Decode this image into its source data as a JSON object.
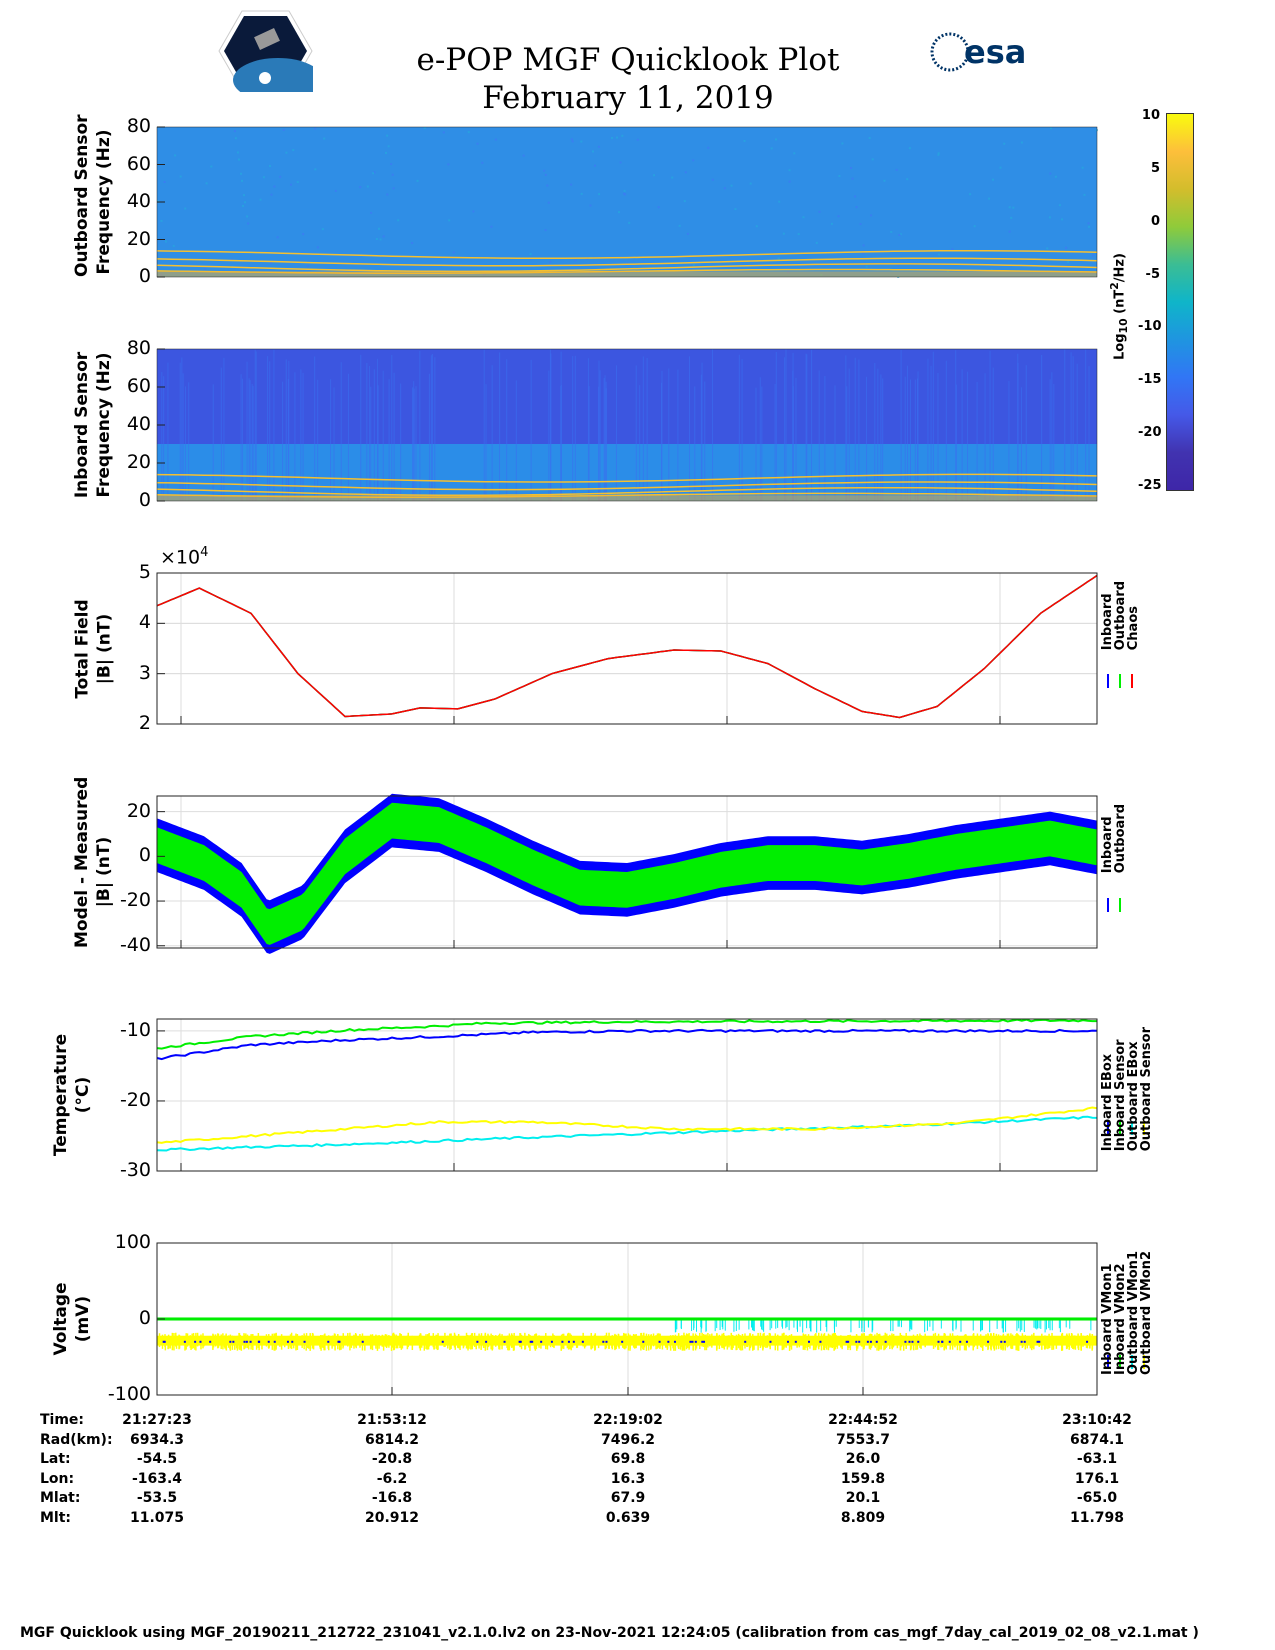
{
  "header": {
    "title": "e-POP MGF Quicklook Plot",
    "date": "February 11, 2019",
    "left_logo": "CASSIOPE e-POP",
    "right_logo": "esa"
  },
  "colorbar": {
    "label": "Log10 (nT^2/Hz)",
    "label_main": "Log",
    "label_sub": "10",
    "label_rest": " (nT",
    "label_sup": "2",
    "label_end": "/Hz)",
    "range": [
      -25,
      10
    ],
    "ticks": [
      "10",
      "5",
      "0",
      "-5",
      "-10",
      "-15",
      "-20",
      "-25"
    ]
  },
  "chart_data": [
    {
      "type": "heatmap",
      "name": "outboard-spectrogram",
      "ylabel": [
        "Outboard Sensor",
        "Frequency (Hz)"
      ],
      "ylim": [
        0,
        80
      ],
      "yticks": [
        "80",
        "60",
        "40",
        "20",
        "0"
      ]
    },
    {
      "type": "heatmap",
      "name": "inboard-spectrogram",
      "ylabel": [
        "Inboard Sensor",
        "Frequency (Hz)"
      ],
      "ylim": [
        0,
        80
      ],
      "yticks": [
        "80",
        "60",
        "40",
        "20",
        "0"
      ]
    },
    {
      "type": "line",
      "name": "total-field",
      "ylabel": [
        "Total Field",
        "|B| (nT)"
      ],
      "ylim": [
        2,
        5
      ],
      "yticks": [
        "5",
        "4",
        "3",
        "2"
      ],
      "exponent": "×10",
      "exponent_power": "4",
      "legend": [
        "Inboard",
        "Outboard",
        "Chaos"
      ],
      "colors": [
        "#0000ff",
        "#00ee00",
        "#ff0000"
      ],
      "x": [
        0,
        0.045,
        0.1,
        0.15,
        0.2,
        0.25,
        0.28,
        0.32,
        0.36,
        0.42,
        0.48,
        0.55,
        0.6,
        0.65,
        0.7,
        0.75,
        0.79,
        0.83,
        0.88,
        0.94,
        1
      ],
      "y": [
        4.35,
        4.7,
        4.2,
        3.0,
        2.15,
        2.2,
        2.32,
        2.3,
        2.5,
        3.0,
        3.3,
        3.47,
        3.45,
        3.2,
        2.7,
        2.25,
        2.13,
        2.35,
        3.1,
        4.2,
        4.95
      ]
    },
    {
      "type": "line",
      "name": "model-minus-measured",
      "ylabel": [
        "Model - Measured",
        "|B| (nT)"
      ],
      "ylim": [
        -41,
        27
      ],
      "yticks": [
        "20",
        "0",
        "-20",
        "-40"
      ],
      "ytick_values": [
        20,
        0,
        -20,
        -40
      ],
      "legend": [
        "Inboard",
        "Outboard"
      ],
      "colors": [
        "#0000ff",
        "#00ee00"
      ],
      "x": [
        0,
        0.05,
        0.09,
        0.118,
        0.155,
        0.2,
        0.25,
        0.3,
        0.35,
        0.4,
        0.45,
        0.5,
        0.55,
        0.6,
        0.65,
        0.7,
        0.75,
        0.8,
        0.85,
        0.9,
        0.95,
        1
      ],
      "y": [
        5,
        -3,
        -15,
        -32,
        -25,
        0,
        16,
        14,
        5,
        -5,
        -14,
        -15,
        -11,
        -6,
        -3,
        -3,
        -5,
        -2,
        2,
        5,
        8,
        4
      ],
      "band_outboard": 8,
      "band_inboard": 12
    },
    {
      "type": "line",
      "name": "temperature",
      "ylabel": [
        "Temperature",
        "(°C)"
      ],
      "ylim": [
        -30,
        -8.3
      ],
      "yticks": [
        "-10",
        "-20",
        "-30"
      ],
      "ytick_values": [
        -10,
        -20,
        -30
      ],
      "legend": [
        "Inboard EBox",
        "Inboard Sensor",
        "Outboard EBox",
        "Outboard Sensor"
      ],
      "colors": [
        "#0000ff",
        "#00ee00",
        "#00eeee",
        "#ffff00"
      ],
      "series": [
        {
          "name": "Inboard EBox",
          "x": [
            0,
            0.1,
            0.2,
            0.3,
            0.4,
            0.5,
            1
          ],
          "y": [
            -14,
            -12,
            -11.3,
            -10.8,
            -10.2,
            -10,
            -10
          ]
        },
        {
          "name": "Inboard Sensor",
          "x": [
            0,
            0.1,
            0.2,
            0.3,
            0.35,
            0.5,
            1
          ],
          "y": [
            -12.5,
            -10.8,
            -9.9,
            -9.3,
            -8.9,
            -8.7,
            -8.5
          ]
        },
        {
          "name": "Outboard EBox",
          "x": [
            0,
            0.2,
            0.4,
            0.6,
            0.8,
            1
          ],
          "y": [
            -27,
            -26.2,
            -25.2,
            -24.3,
            -23.5,
            -22.3
          ]
        },
        {
          "name": "Outboard Sensor",
          "x": [
            0,
            0.15,
            0.3,
            0.4,
            0.55,
            0.7,
            0.85,
            1
          ],
          "y": [
            -26,
            -24.5,
            -23,
            -23,
            -24,
            -24,
            -23.2,
            -21
          ]
        }
      ]
    },
    {
      "type": "line",
      "name": "voltage",
      "ylabel": [
        "Voltage",
        "(mV)"
      ],
      "ylim": [
        -100,
        100
      ],
      "yticks": [
        "100",
        "0",
        "-100"
      ],
      "ytick_values": [
        100,
        0,
        -100
      ],
      "legend": [
        "Inboard VMon1",
        "Inboard VMon2",
        "Outboard VMon1",
        "Outboard VMon2"
      ],
      "colors": [
        "#0000ff",
        "#00ee00",
        "#00eeee",
        "#ffff00"
      ],
      "levels": {
        "Inboard VMon1": -30,
        "Inboard VMon2": 0,
        "Outboard VMon1": -5,
        "Outboard VMon2": -30
      }
    }
  ],
  "table": {
    "labels": [
      "Time:",
      "Rad(km):",
      "Lat:",
      "Lon:",
      "Mlat:",
      "Mlt:"
    ],
    "columns": [
      [
        "21:27:23",
        "6934.3",
        "-54.5",
        "-163.4",
        "-53.5",
        "11.075"
      ],
      [
        "21:53:12",
        "6814.2",
        "-20.8",
        "-6.2",
        "-16.8",
        "20.912"
      ],
      [
        "22:19:02",
        "7496.2",
        "69.8",
        "16.3",
        "67.9",
        "0.639"
      ],
      [
        "22:44:52",
        "7553.7",
        "26.0",
        "159.8",
        "20.1",
        "8.809"
      ],
      [
        "23:10:42",
        "6874.1",
        "-63.1",
        "176.1",
        "-65.0",
        "11.798"
      ]
    ]
  },
  "footer": "MGF Quicklook using MGF_20190211_212722_231041_v2.1.0.lv2 on 23-Nov-2021 12:24:05 (calibration from cas_mgf_7day_cal_2019_02_08_v2.1.mat )"
}
